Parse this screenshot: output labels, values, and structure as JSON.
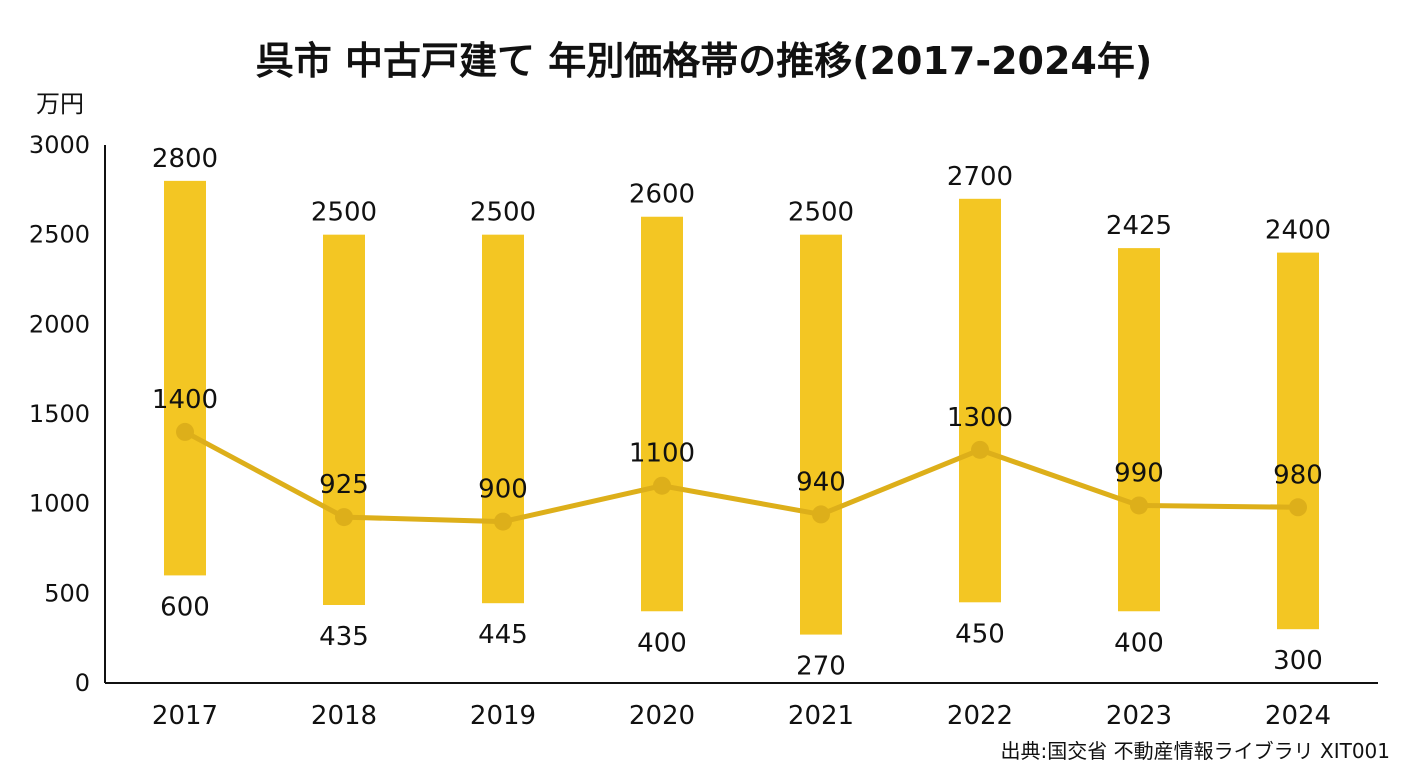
{
  "chart_data": {
    "type": "bar",
    "title": "呉市 中古戸建て 年別価格帯の推移(2017-2024年)",
    "ylabel": "万円",
    "xlabel": "",
    "ylim": [
      0,
      3000
    ],
    "yticks": [
      0,
      500,
      1000,
      1500,
      2000,
      2500,
      3000
    ],
    "categories": [
      "2017",
      "2018",
      "2019",
      "2020",
      "2021",
      "2022",
      "2023",
      "2024"
    ],
    "series": [
      {
        "type": "range-bar",
        "low": [
          600,
          435,
          445,
          400,
          270,
          450,
          400,
          300
        ],
        "high": [
          2800,
          2500,
          2500,
          2600,
          2500,
          2700,
          2425,
          2400
        ]
      },
      {
        "type": "line",
        "values": [
          1400,
          925,
          900,
          1100,
          940,
          1300,
          990,
          980
        ]
      }
    ],
    "grid": false,
    "colors": {
      "bar": "#F3C623",
      "line": "#DDAF1A",
      "axis": "#111111"
    },
    "source": "出典:国交省 不動産情報ライブラリ XIT001"
  }
}
